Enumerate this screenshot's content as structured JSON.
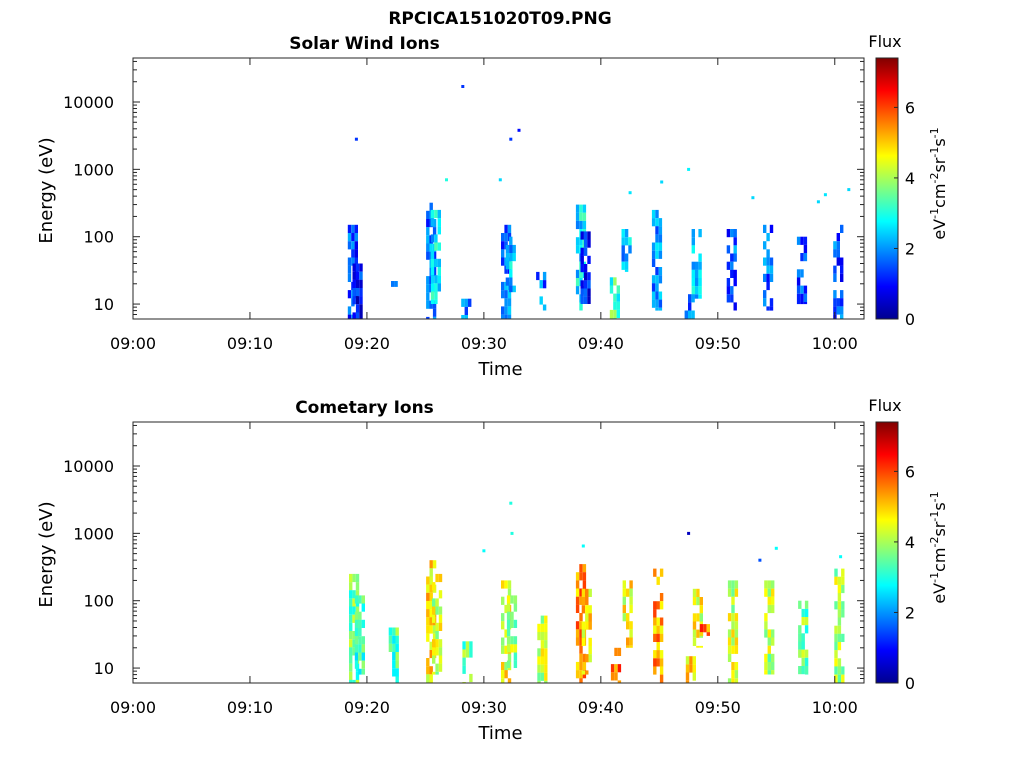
{
  "figure": {
    "title": "RPCICA151020T09.PNG"
  },
  "colorscale": {
    "stops": [
      "#00008f",
      "#0000ff",
      "#0080ff",
      "#00ffff",
      "#80ff80",
      "#ffff00",
      "#ff8000",
      "#ff0000",
      "#800000"
    ],
    "empty_color": "#ffffff"
  },
  "chart_data": [
    {
      "type": "heatmap",
      "title": "Solar Wind Ions",
      "xlabel": "Time",
      "ylabel": "Energy (eV)",
      "x_ticks": [
        "09:00",
        "09:10",
        "09:20",
        "09:30",
        "09:40",
        "09:50",
        "10:00"
      ],
      "y_ticks": [
        "10",
        "100",
        "1000",
        "10000"
      ],
      "y_scale": "log",
      "ylim": [
        6,
        45000
      ],
      "xlim_minutes": [
        0,
        62.5
      ],
      "colorbar": {
        "label": "Flux",
        "unit": "eV-1cm-2sr-1s-1",
        "ticks": [
          "0",
          "2",
          "4",
          "6"
        ],
        "range": [
          0,
          7.4
        ]
      },
      "bursts": [
        {
          "t": 18.8,
          "e_min": 6,
          "e_max": 150,
          "flux": 1.4
        },
        {
          "t": 19.2,
          "e_min": 6,
          "e_max": 40,
          "flux": 1.0
        },
        {
          "t": 22.2,
          "e_min": 18,
          "e_max": 22,
          "flux": 1.3
        },
        {
          "t": 25.5,
          "e_min": 6,
          "e_max": 320,
          "flux": 1.8
        },
        {
          "t": 25.9,
          "e_min": 10,
          "e_max": 250,
          "flux": 2.6
        },
        {
          "t": 28.5,
          "e_min": 6,
          "e_max": 12,
          "flux": 1.8
        },
        {
          "t": 31.9,
          "e_min": 6,
          "e_max": 150,
          "flux": 1.7
        },
        {
          "t": 32.3,
          "e_min": 15,
          "e_max": 100,
          "flux": 2.3
        },
        {
          "t": 34.9,
          "e_min": 8,
          "e_max": 30,
          "flux": 1.8
        },
        {
          "t": 38.3,
          "e_min": 8,
          "e_max": 300,
          "flux": 2.6
        },
        {
          "t": 38.7,
          "e_min": 10,
          "e_max": 120,
          "flux": 1.2
        },
        {
          "t": 41.2,
          "e_min": 6,
          "e_max": 25,
          "flux": 3.3
        },
        {
          "t": 42.2,
          "e_min": 30,
          "e_max": 130,
          "flux": 2.2
        },
        {
          "t": 44.8,
          "e_min": 8,
          "e_max": 250,
          "flux": 1.9
        },
        {
          "t": 47.6,
          "e_min": 6,
          "e_max": 14,
          "flux": 1.6
        },
        {
          "t": 48.2,
          "e_min": 12,
          "e_max": 130,
          "flux": 2.3
        },
        {
          "t": 51.2,
          "e_min": 8,
          "e_max": 130,
          "flux": 1.6
        },
        {
          "t": 54.3,
          "e_min": 8,
          "e_max": 150,
          "flux": 1.7
        },
        {
          "t": 57.2,
          "e_min": 10,
          "e_max": 100,
          "flux": 1.3
        },
        {
          "t": 60.3,
          "e_min": 6,
          "e_max": 150,
          "flux": 1.5
        }
      ],
      "points": [
        {
          "t": 19.1,
          "e": 2800,
          "flux": 1.3
        },
        {
          "t": 28.2,
          "e": 17000,
          "flux": 1.3
        },
        {
          "t": 32.3,
          "e": 2800,
          "flux": 1.3
        },
        {
          "t": 33.0,
          "e": 3800,
          "flux": 1.0
        },
        {
          "t": 26.8,
          "e": 700,
          "flux": 3.0
        },
        {
          "t": 31.4,
          "e": 700,
          "flux": 2.5
        },
        {
          "t": 42.5,
          "e": 450,
          "flux": 2.6
        },
        {
          "t": 45.2,
          "e": 650,
          "flux": 2.5
        },
        {
          "t": 47.5,
          "e": 1000,
          "flux": 2.7
        },
        {
          "t": 53.0,
          "e": 380,
          "flux": 2.5
        },
        {
          "t": 58.6,
          "e": 330,
          "flux": 2.5
        },
        {
          "t": 59.2,
          "e": 420,
          "flux": 2.6
        },
        {
          "t": 61.2,
          "e": 500,
          "flux": 2.5
        }
      ]
    },
    {
      "type": "heatmap",
      "title": "Cometary Ions",
      "xlabel": "Time",
      "ylabel": "Energy (eV)",
      "x_ticks": [
        "09:00",
        "09:10",
        "09:20",
        "09:30",
        "09:40",
        "09:50",
        "10:00"
      ],
      "y_ticks": [
        "10",
        "100",
        "1000",
        "10000"
      ],
      "y_scale": "log",
      "ylim": [
        6,
        45000
      ],
      "xlim_minutes": [
        0,
        62.5
      ],
      "colorbar": {
        "label": "Flux",
        "unit": "eV-1cm-2sr-1s-1",
        "ticks": [
          "0",
          "2",
          "4",
          "6"
        ],
        "range": [
          0,
          7.4
        ]
      },
      "bursts": [
        {
          "t": 18.9,
          "e_min": 6,
          "e_max": 250,
          "flux": 3.6
        },
        {
          "t": 19.4,
          "e_min": 8,
          "e_max": 120,
          "flux": 3.2
        },
        {
          "t": 22.3,
          "e_min": 6,
          "e_max": 40,
          "flux": 3.4
        },
        {
          "t": 25.5,
          "e_min": 6,
          "e_max": 400,
          "flux": 4.8
        },
        {
          "t": 26.0,
          "e_min": 8,
          "e_max": 250,
          "flux": 4.3
        },
        {
          "t": 28.6,
          "e_min": 6,
          "e_max": 25,
          "flux": 3.6
        },
        {
          "t": 31.9,
          "e_min": 6,
          "e_max": 200,
          "flux": 4.5
        },
        {
          "t": 32.4,
          "e_min": 10,
          "e_max": 120,
          "flux": 3.9
        },
        {
          "t": 35.0,
          "e_min": 6,
          "e_max": 60,
          "flux": 4.3
        },
        {
          "t": 38.3,
          "e_min": 6,
          "e_max": 350,
          "flux": 5.4
        },
        {
          "t": 38.8,
          "e_min": 8,
          "e_max": 150,
          "flux": 4.8
        },
        {
          "t": 41.3,
          "e_min": 6,
          "e_max": 20,
          "flux": 5.7
        },
        {
          "t": 42.3,
          "e_min": 20,
          "e_max": 200,
          "flux": 4.6
        },
        {
          "t": 44.9,
          "e_min": 6,
          "e_max": 300,
          "flux": 5.3
        },
        {
          "t": 47.7,
          "e_min": 6,
          "e_max": 15,
          "flux": 4.7
        },
        {
          "t": 48.3,
          "e_min": 20,
          "e_max": 150,
          "flux": 4.5
        },
        {
          "t": 48.9,
          "e_min": 30,
          "e_max": 45,
          "flux": 5.7
        },
        {
          "t": 51.3,
          "e_min": 6,
          "e_max": 200,
          "flux": 4.3
        },
        {
          "t": 54.4,
          "e_min": 8,
          "e_max": 200,
          "flux": 4.1
        },
        {
          "t": 57.3,
          "e_min": 8,
          "e_max": 100,
          "flux": 3.6
        },
        {
          "t": 60.4,
          "e_min": 6,
          "e_max": 300,
          "flux": 4.0
        }
      ],
      "points": [
        {
          "t": 32.3,
          "e": 2800,
          "flux": 3.0
        },
        {
          "t": 32.4,
          "e": 1000,
          "flux": 3.0
        },
        {
          "t": 47.5,
          "e": 1000,
          "flux": 0.4
        },
        {
          "t": 38.5,
          "e": 650,
          "flux": 2.8
        },
        {
          "t": 30.0,
          "e": 550,
          "flux": 2.8
        },
        {
          "t": 53.6,
          "e": 400,
          "flux": 1.5
        },
        {
          "t": 55.0,
          "e": 600,
          "flux": 2.8
        },
        {
          "t": 60.5,
          "e": 450,
          "flux": 2.8
        }
      ]
    }
  ]
}
